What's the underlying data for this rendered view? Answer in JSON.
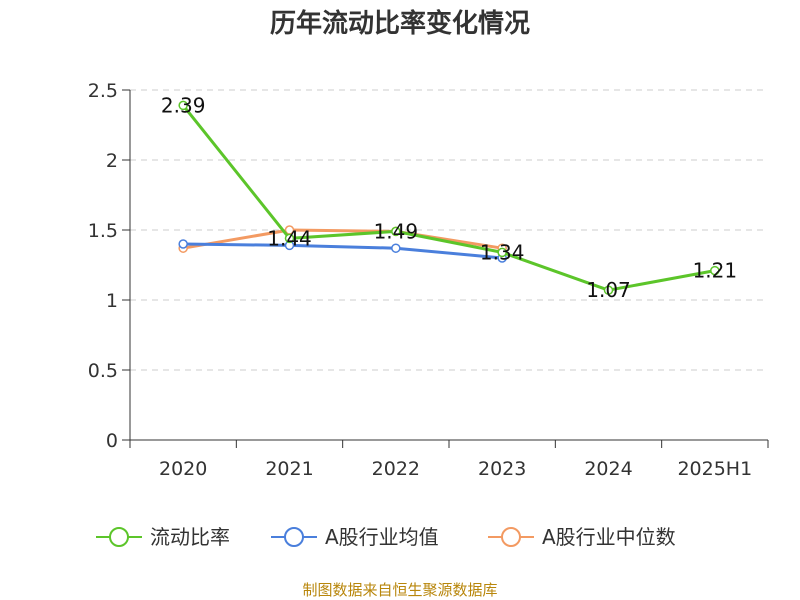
{
  "chart_data": {
    "type": "line",
    "title": "历年流动比率变化情况",
    "categories": [
      "2020",
      "2021",
      "2022",
      "2023",
      "2024",
      "2025H1"
    ],
    "ylim": [
      0,
      2.5
    ],
    "yticks": [
      "0",
      "0.5",
      "1",
      "1.5",
      "2",
      "2.5"
    ],
    "ytick_values": [
      0,
      0.5,
      1,
      1.5,
      2,
      2.5
    ],
    "grid": true,
    "legend_position": "bottom",
    "series": [
      {
        "name": "流动比率",
        "color": "#5cc52a",
        "values": [
          2.39,
          1.44,
          1.49,
          1.34,
          1.07,
          1.21
        ],
        "labels": [
          "2.39",
          "1.44",
          "1.49",
          "1.34",
          "1.07",
          "1.21"
        ]
      },
      {
        "name": "A股行业均值",
        "color": "#4a7fdc",
        "values": [
          1.4,
          1.39,
          1.37,
          1.3,
          null,
          null
        ]
      },
      {
        "name": "A股行业中位数",
        "color": "#f39a62",
        "values": [
          1.37,
          1.5,
          1.49,
          1.37,
          null,
          null
        ]
      }
    ]
  },
  "source": "制图数据来自恒生聚源数据库"
}
